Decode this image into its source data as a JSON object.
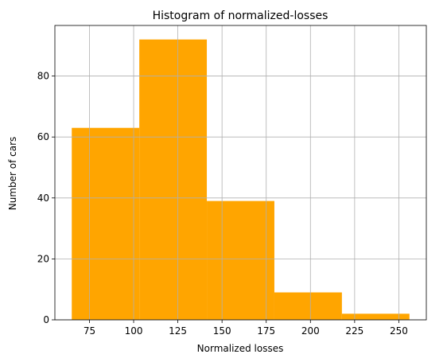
{
  "chart_data": {
    "type": "bar",
    "title": "Histogram of normalized-losses",
    "xlabel": "Normalized losses",
    "ylabel": "Number of cars",
    "bins": [
      {
        "x0": 65,
        "x1": 103.2,
        "count": 63
      },
      {
        "x0": 103.2,
        "x1": 141.4,
        "count": 92
      },
      {
        "x0": 141.4,
        "x1": 179.6,
        "count": 39
      },
      {
        "x0": 179.6,
        "x1": 217.8,
        "count": 9
      },
      {
        "x0": 217.8,
        "x1": 256,
        "count": 2
      }
    ],
    "xlim": [
      55.45,
      265.55
    ],
    "ylim": [
      0,
      96.6
    ],
    "xticks": [
      75,
      100,
      125,
      150,
      175,
      200,
      225,
      250
    ],
    "xtick_labels": [
      "75",
      "100",
      "125",
      "150",
      "175",
      "200",
      "225",
      "250"
    ],
    "yticks": [
      0,
      20,
      40,
      60,
      80
    ],
    "ytick_labels": [
      "0",
      "20",
      "40",
      "60",
      "80"
    ],
    "bar_color": "#ffa500",
    "grid": true,
    "grid_color": "#b0b0b0"
  }
}
